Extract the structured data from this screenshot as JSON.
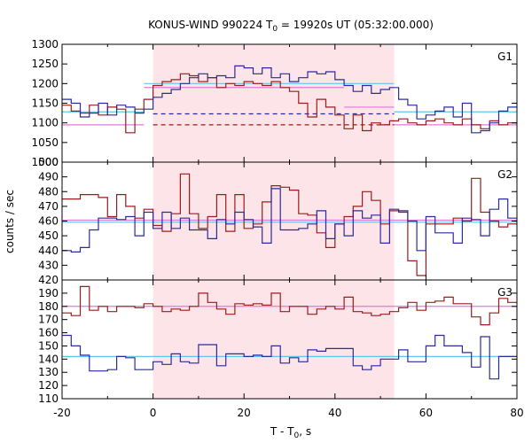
{
  "chart_data": {
    "type": "line",
    "title_main": "KONUS-WIND 990224 T",
    "title_sub": "0",
    "title_rest": " = 19920s UT (05:32:00.000)",
    "xlabel_main": "T - T",
    "xlabel_sub": "0",
    "xlabel_rest": ", s",
    "ylabel": "counts / sec",
    "xlim": [
      -20,
      80
    ],
    "x_ticks": [
      -20,
      0,
      20,
      40,
      60,
      80
    ],
    "shaded_region": [
      0,
      53
    ],
    "colors": {
      "shade": "#fde4e8",
      "red": "#9b1c1c",
      "blue": "#2b2b9b",
      "cyan": "#5bc8e8",
      "pink": "#e07ad8"
    },
    "bin_edges": [
      -20,
      -18,
      -16,
      -14,
      -12,
      -10,
      -8,
      -6,
      -4,
      -2,
      0,
      2,
      4,
      6,
      8,
      10,
      12,
      14,
      16,
      18,
      20,
      22,
      24,
      26,
      28,
      30,
      32,
      34,
      36,
      38,
      40,
      42,
      44,
      46,
      48,
      50,
      52,
      54,
      56,
      58,
      60,
      62,
      64,
      66,
      68,
      70,
      72,
      74,
      76,
      78,
      80
    ],
    "panels": [
      {
        "label": "G1",
        "ylim": [
          1000,
          1300
        ],
        "y_ticks": [
          1000,
          1050,
          1100,
          1150,
          1200,
          1250,
          1300
        ],
        "series": [
          {
            "color": "red",
            "values": [
              1145,
              1130,
              1125,
              1145,
              1120,
              1140,
              1135,
              1075,
              1135,
              1160,
              1195,
              1205,
              1210,
              1225,
              1220,
              1205,
              1215,
              1190,
              1200,
              1195,
              1205,
              1200,
              1195,
              1205,
              1190,
              1180,
              1150,
              1115,
              1160,
              1140,
              1120,
              1085,
              1120,
              1080,
              1100,
              1095,
              1105,
              1110,
              1100,
              1095,
              1105,
              1110,
              1100,
              1095,
              1110,
              1095,
              1085,
              1105,
              1095,
              1100
            ]
          },
          {
            "color": "blue",
            "values": [
              1160,
              1150,
              1115,
              1125,
              1150,
              1120,
              1145,
              1140,
              1125,
              1135,
              1165,
              1175,
              1185,
              1200,
              1215,
              1225,
              1215,
              1220,
              1215,
              1245,
              1240,
              1225,
              1240,
              1215,
              1225,
              1205,
              1215,
              1230,
              1225,
              1230,
              1210,
              1195,
              1180,
              1195,
              1175,
              1185,
              1190,
              1160,
              1145,
              1110,
              1120,
              1130,
              1140,
              1115,
              1150,
              1075,
              1080,
              1100,
              1130,
              1140
            ]
          }
        ],
        "steps": [
          {
            "color": "cyan",
            "x": [
              -20,
              -2
            ],
            "y": 1128
          },
          {
            "color": "pink",
            "x": [
              -20,
              -2
            ],
            "y": 1095
          },
          {
            "color": "pink",
            "x": [
              -2,
              42
            ],
            "y": 1190
          },
          {
            "color": "cyan",
            "x": [
              -2,
              53
            ],
            "y": 1200
          },
          {
            "color": "pink",
            "x": [
              42,
              53
            ],
            "y": 1140
          },
          {
            "color": "cyan",
            "x": [
              53,
              80
            ],
            "y": 1128
          },
          {
            "color": "pink",
            "x": [
              53,
              80
            ],
            "y": 1095
          }
        ],
        "dashed": [
          {
            "color": "blue",
            "x": [
              0,
              53
            ],
            "y": 1123
          },
          {
            "color": "red",
            "x": [
              0,
              53
            ],
            "y": 1095
          }
        ]
      },
      {
        "label": "G2",
        "ylim": [
          420,
          500
        ],
        "y_ticks": [
          420,
          430,
          440,
          450,
          460,
          470,
          480,
          490,
          500
        ],
        "series": [
          {
            "color": "red",
            "values": [
              475,
              475,
              478,
              478,
              476,
              463,
              478,
              470,
              462,
              468,
              457,
              453,
              465,
              492,
              465,
              455,
              463,
              478,
              453,
              478,
              455,
              458,
              473,
              484,
              483,
              481,
              465,
              464,
              452,
              442,
              458,
              463,
              470,
              480,
              474,
              458,
              467,
              466,
              433,
              423,
              458,
              458,
              458,
              462,
              460,
              489,
              466,
              460,
              456,
              458
            ]
          },
          {
            "color": "blue",
            "values": [
              440,
              439,
              442,
              454,
              462,
              462,
              461,
              463,
              450,
              466,
              455,
              466,
              455,
              462,
              454,
              454,
              448,
              461,
              458,
              466,
              461,
              456,
              445,
              482,
              454,
              454,
              455,
              458,
              467,
              448,
              458,
              450,
              467,
              462,
              464,
              445,
              468,
              467,
              460,
              440,
              463,
              452,
              452,
              445,
              462,
              461,
              450,
              468,
              475,
              462
            ]
          }
        ],
        "steps": [
          {
            "color": "pink",
            "x": [
              -20,
              80
            ],
            "y": 460.6
          },
          {
            "color": "cyan",
            "x": [
              -20,
              80
            ],
            "y": 459.2
          }
        ],
        "dashed": []
      },
      {
        "label": "G3",
        "ylim": [
          110,
          200
        ],
        "y_ticks": [
          110,
          120,
          130,
          140,
          150,
          160,
          170,
          180,
          190
        ],
        "series": [
          {
            "color": "red",
            "values": [
              175,
              173,
              195,
              177,
              180,
              176,
              180,
              180,
              179,
              182,
              180,
              176,
              178,
              177,
              180,
              190,
              183,
              178,
              174,
              182,
              181,
              182,
              181,
              190,
              176,
              180,
              180,
              174,
              178,
              180,
              178,
              187,
              176,
              175,
              173,
              174,
              176,
              179,
              183,
              177,
              183,
              184,
              187,
              182,
              182,
              172,
              166,
              175,
              186,
              183
            ]
          },
          {
            "color": "blue",
            "values": [
              158,
              150,
              143,
              131,
              131,
              132,
              142,
              141,
              132,
              132,
              138,
              136,
              144,
              138,
              137,
              151,
              151,
              135,
              144,
              144,
              142,
              143,
              142,
              150,
              137,
              141,
              138,
              147,
              146,
              148,
              148,
              148,
              135,
              132,
              135,
              140,
              140,
              147,
              138,
              138,
              150,
              158,
              150,
              150,
              145,
              134,
              157,
              125,
              142,
              142
            ]
          }
        ],
        "steps": [
          {
            "color": "pink",
            "x": [
              -20,
              80
            ],
            "y": 180
          },
          {
            "color": "cyan",
            "x": [
              -20,
              80
            ],
            "y": 142
          }
        ],
        "dashed": []
      }
    ]
  }
}
